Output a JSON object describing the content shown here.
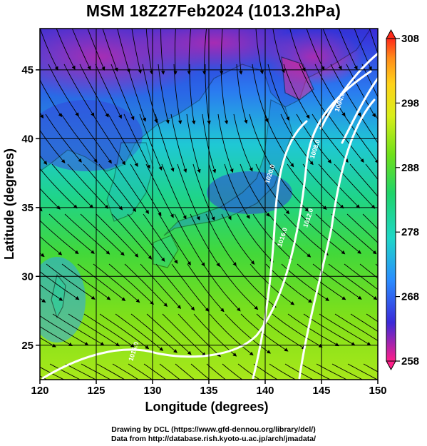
{
  "title": "MSM 18Z27Feb2024 (1013.2hPa)",
  "x_axis": {
    "label": "Longitude (degrees)",
    "range": [
      120,
      150
    ],
    "ticks": [
      120,
      125,
      130,
      135,
      140,
      145,
      150
    ]
  },
  "y_axis": {
    "label": "Latitude  (degrees)",
    "range": [
      22.5,
      48
    ],
    "ticks": [
      25,
      30,
      35,
      40,
      45
    ]
  },
  "colorbar": {
    "range": [
      258,
      308
    ],
    "tick_labels": [
      "308",
      "298",
      "288",
      "278",
      "268",
      "258"
    ],
    "colors": [
      "#ff1f8a",
      "#3a2ad8",
      "#2a8cff",
      "#1fd6c8",
      "#1fd46a",
      "#6fe01a",
      "#d9ee1a",
      "#ffd21a",
      "#ff8c1a",
      "#ff2a1a"
    ]
  },
  "isobars": [
    {
      "label": "1004.0",
      "lon": 146.8,
      "lat": 42.6
    },
    {
      "label": "1008.0",
      "lon": 144.6,
      "lat": 39.2
    },
    {
      "label": "1012.0",
      "lon": 144.0,
      "lat": 34.2
    },
    {
      "label": "1016.0",
      "lon": 141.7,
      "lat": 32.8
    },
    {
      "label": "1020.0",
      "lon": 140.6,
      "lat": 37.4
    },
    {
      "label": "1016.0",
      "lon": 128.5,
      "lat": 24.5
    }
  ],
  "credits": [
    "Drawing by DCL (https://www.gfd-dennou.org/library/dcl/)",
    "Data from http://database.rish.kyoto-u.ac.jp/arch/jmadata/"
  ]
}
